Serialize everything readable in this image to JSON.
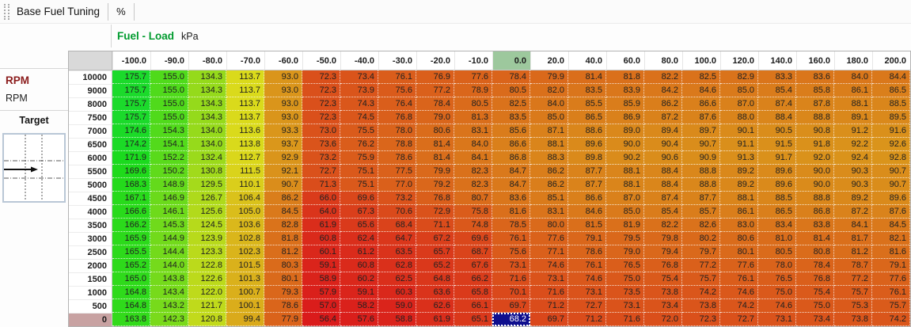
{
  "toolbar": {
    "tabs": [
      {
        "label": "Base Fuel Tuning"
      },
      {
        "label": "%"
      }
    ]
  },
  "axis": {
    "title": "Fuel - Load",
    "unit": "kPa"
  },
  "sidebar": {
    "y_axis_title": "RPM",
    "y_axis_unit": "RPM",
    "target_label": "Target"
  },
  "colors": {
    "axis_title_green": "#009b2e",
    "y_axis_title_maroon": "#8b1c1c",
    "selected_cell_bg": "#0f0f8e",
    "selected_col_header_bg": "#9dc89d",
    "selected_row_header_bg": "#c8a2a2",
    "corner_bg": "#d9d9d9",
    "heat_scale": {
      "hue_min": 0,
      "hue_max": 125,
      "saturation": 78,
      "lightness": 48
    }
  },
  "table": {
    "col_headers": [
      "-100.0",
      "-90.0",
      "-80.0",
      "-70.0",
      "-60.0",
      "-50.0",
      "-40.0",
      "-30.0",
      "-20.0",
      "-10.0",
      "0.0",
      "20.0",
      "40.0",
      "60.0",
      "80.0",
      "100.0",
      "120.0",
      "140.0",
      "160.0",
      "180.0",
      "200.0"
    ],
    "row_headers": [
      "10000",
      "9000",
      "8000",
      "7500",
      "7000",
      "6500",
      "6000",
      "5500",
      "5000",
      "4500",
      "4000",
      "3500",
      "3000",
      "2500",
      "2000",
      "1500",
      "1000",
      "500",
      "0"
    ],
    "rows": [
      [
        "175.7",
        "155.0",
        "134.3",
        "113.7",
        "93.0",
        "72.3",
        "73.4",
        "76.1",
        "76.9",
        "77.6",
        "78.4",
        "79.9",
        "81.4",
        "81.8",
        "82.2",
        "82.5",
        "82.9",
        "83.3",
        "83.6",
        "84.0",
        "84.4"
      ],
      [
        "175.7",
        "155.0",
        "134.3",
        "113.7",
        "93.0",
        "72.3",
        "73.9",
        "75.6",
        "77.2",
        "78.9",
        "80.5",
        "82.0",
        "83.5",
        "83.9",
        "84.2",
        "84.6",
        "85.0",
        "85.4",
        "85.8",
        "86.1",
        "86.5"
      ],
      [
        "175.7",
        "155.0",
        "134.3",
        "113.7",
        "93.0",
        "72.3",
        "74.3",
        "76.4",
        "78.4",
        "80.5",
        "82.5",
        "84.0",
        "85.5",
        "85.9",
        "86.2",
        "86.6",
        "87.0",
        "87.4",
        "87.8",
        "88.1",
        "88.5"
      ],
      [
        "175.7",
        "155.0",
        "134.3",
        "113.7",
        "93.0",
        "72.3",
        "74.5",
        "76.8",
        "79.0",
        "81.3",
        "83.5",
        "85.0",
        "86.5",
        "86.9",
        "87.2",
        "87.6",
        "88.0",
        "88.4",
        "88.8",
        "89.1",
        "89.5"
      ],
      [
        "174.6",
        "154.3",
        "134.0",
        "113.6",
        "93.3",
        "73.0",
        "75.5",
        "78.0",
        "80.6",
        "83.1",
        "85.6",
        "87.1",
        "88.6",
        "89.0",
        "89.4",
        "89.7",
        "90.1",
        "90.5",
        "90.8",
        "91.2",
        "91.6"
      ],
      [
        "174.2",
        "154.1",
        "134.0",
        "113.8",
        "93.7",
        "73.6",
        "76.2",
        "78.8",
        "81.4",
        "84.0",
        "86.6",
        "88.1",
        "89.6",
        "90.0",
        "90.4",
        "90.7",
        "91.1",
        "91.5",
        "91.8",
        "92.2",
        "92.6"
      ],
      [
        "171.9",
        "152.2",
        "132.4",
        "112.7",
        "92.9",
        "73.2",
        "75.9",
        "78.6",
        "81.4",
        "84.1",
        "86.8",
        "88.3",
        "89.8",
        "90.2",
        "90.6",
        "90.9",
        "91.3",
        "91.7",
        "92.0",
        "92.4",
        "92.8"
      ],
      [
        "169.6",
        "150.2",
        "130.8",
        "111.5",
        "92.1",
        "72.7",
        "75.1",
        "77.5",
        "79.9",
        "82.3",
        "84.7",
        "86.2",
        "87.7",
        "88.1",
        "88.4",
        "88.8",
        "89.2",
        "89.6",
        "90.0",
        "90.3",
        "90.7"
      ],
      [
        "168.3",
        "148.9",
        "129.5",
        "110.1",
        "90.7",
        "71.3",
        "75.1",
        "77.0",
        "79.2",
        "82.3",
        "84.7",
        "86.2",
        "87.7",
        "88.1",
        "88.4",
        "88.8",
        "89.2",
        "89.6",
        "90.0",
        "90.3",
        "90.7"
      ],
      [
        "167.1",
        "146.9",
        "126.7",
        "106.4",
        "86.2",
        "66.0",
        "69.6",
        "73.2",
        "76.8",
        "80.7",
        "83.6",
        "85.1",
        "86.6",
        "87.0",
        "87.4",
        "87.7",
        "88.1",
        "88.5",
        "88.8",
        "89.2",
        "89.6"
      ],
      [
        "166.6",
        "146.1",
        "125.6",
        "105.0",
        "84.5",
        "64.0",
        "67.3",
        "70.6",
        "72.9",
        "75.8",
        "81.6",
        "83.1",
        "84.6",
        "85.0",
        "85.4",
        "85.7",
        "86.1",
        "86.5",
        "86.8",
        "87.2",
        "87.6"
      ],
      [
        "166.2",
        "145.3",
        "124.5",
        "103.6",
        "82.8",
        "61.9",
        "65.6",
        "68.4",
        "71.1",
        "74.8",
        "78.5",
        "80.0",
        "81.5",
        "81.9",
        "82.2",
        "82.6",
        "83.0",
        "83.4",
        "83.8",
        "84.1",
        "84.5"
      ],
      [
        "165.9",
        "144.9",
        "123.9",
        "102.8",
        "81.8",
        "60.8",
        "62.4",
        "64.7",
        "67.2",
        "69.6",
        "76.1",
        "77.6",
        "79.1",
        "79.5",
        "79.8",
        "80.2",
        "80.6",
        "81.0",
        "81.4",
        "81.7",
        "82.1"
      ],
      [
        "165.5",
        "144.4",
        "123.3",
        "102.3",
        "81.2",
        "60.1",
        "61.2",
        "63.5",
        "65.7",
        "68.7",
        "75.6",
        "77.1",
        "78.6",
        "79.0",
        "79.4",
        "79.7",
        "80.1",
        "80.5",
        "80.8",
        "81.2",
        "81.6"
      ],
      [
        "165.2",
        "144.0",
        "122.8",
        "101.5",
        "80.3",
        "59.1",
        "60.8",
        "62.8",
        "65.2",
        "67.6",
        "73.1",
        "74.6",
        "76.1",
        "76.5",
        "76.8",
        "77.2",
        "77.6",
        "78.0",
        "78.4",
        "78.7",
        "79.1"
      ],
      [
        "165.0",
        "143.8",
        "122.6",
        "101.3",
        "80.1",
        "58.9",
        "60.2",
        "62.5",
        "64.8",
        "66.2",
        "71.6",
        "73.1",
        "74.6",
        "75.0",
        "75.4",
        "75.7",
        "76.1",
        "76.5",
        "76.8",
        "77.2",
        "77.6"
      ],
      [
        "164.8",
        "143.4",
        "122.0",
        "100.7",
        "79.3",
        "57.9",
        "59.1",
        "60.3",
        "63.6",
        "65.8",
        "70.1",
        "71.6",
        "73.1",
        "73.5",
        "73.8",
        "74.2",
        "74.6",
        "75.0",
        "75.4",
        "75.7",
        "76.1"
      ],
      [
        "164.8",
        "143.2",
        "121.7",
        "100.1",
        "78.6",
        "57.0",
        "58.2",
        "59.0",
        "62.6",
        "66.1",
        "69.7",
        "71.2",
        "72.7",
        "73.1",
        "73.4",
        "73.8",
        "74.2",
        "74.6",
        "75.0",
        "75.3",
        "75.7"
      ],
      [
        "163.8",
        "142.3",
        "120.8",
        "99.4",
        "77.9",
        "56.4",
        "57.6",
        "58.8",
        "61.9",
        "65.1",
        "68.2",
        "69.7",
        "71.2",
        "71.6",
        "72.0",
        "72.3",
        "72.7",
        "73.1",
        "73.4",
        "73.8",
        "74.2"
      ]
    ],
    "selected": {
      "row_header": "0",
      "col_header": "0.0",
      "value": "68.2"
    }
  }
}
